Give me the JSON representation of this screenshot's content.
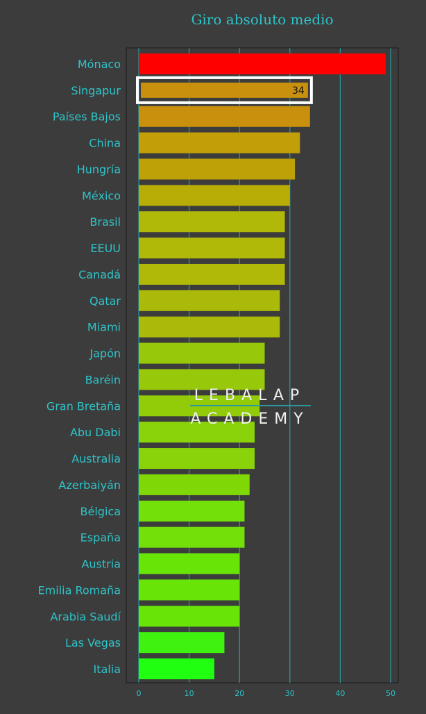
{
  "chart_data": {
    "type": "bar",
    "orientation": "horizontal",
    "title": "Giro absoluto medio",
    "xlabel": "",
    "ylabel": "",
    "xlim": [
      0,
      51
    ],
    "x_ticks": [
      0,
      10,
      20,
      30,
      40,
      50
    ],
    "grid": true,
    "categories": [
      "Mónaco",
      "Singapur",
      "Países Bajos",
      "China",
      "Hungría",
      "México",
      "Brasil",
      "EEUU",
      "Canadá",
      "Qatar",
      "Miami",
      "Japón",
      "Baréin",
      "Gran Bretaña",
      "Abu Dabi",
      "Australia",
      "Azerbaiyán",
      "Bélgica",
      "España",
      "Austria",
      "Emilia Romaña",
      "Arabia Saudí",
      "Las Vegas",
      "Italia"
    ],
    "values": [
      49,
      34,
      34,
      32,
      31,
      30,
      29,
      29,
      29,
      28,
      28,
      25,
      25,
      24,
      23,
      23,
      22,
      21,
      21,
      20,
      20,
      20,
      17,
      15
    ],
    "bar_colors": [
      "#ff0000",
      "#c8900c",
      "#c8900c",
      "#c29e08",
      "#bea106",
      "#b8ac06",
      "#b0b808",
      "#b0b808",
      "#b0b808",
      "#abb908",
      "#abb908",
      "#98c80a",
      "#98c80a",
      "#92cb08",
      "#8ad30a",
      "#8ad30a",
      "#80d706",
      "#74e00a",
      "#74e00a",
      "#68e406",
      "#68e406",
      "#68e406",
      "#40f210",
      "#20ff10"
    ],
    "highlight": {
      "category": "Singapur",
      "label": "34"
    },
    "watermark": {
      "line1": "LEBALAP",
      "line2": "ACADEMY"
    },
    "colors": {
      "background": "#3c3c3c",
      "text": "#2ec4c9",
      "grid": "#2a9aa0",
      "highlight_border": "#ffffff",
      "watermark": "#f0f0f0"
    }
  }
}
